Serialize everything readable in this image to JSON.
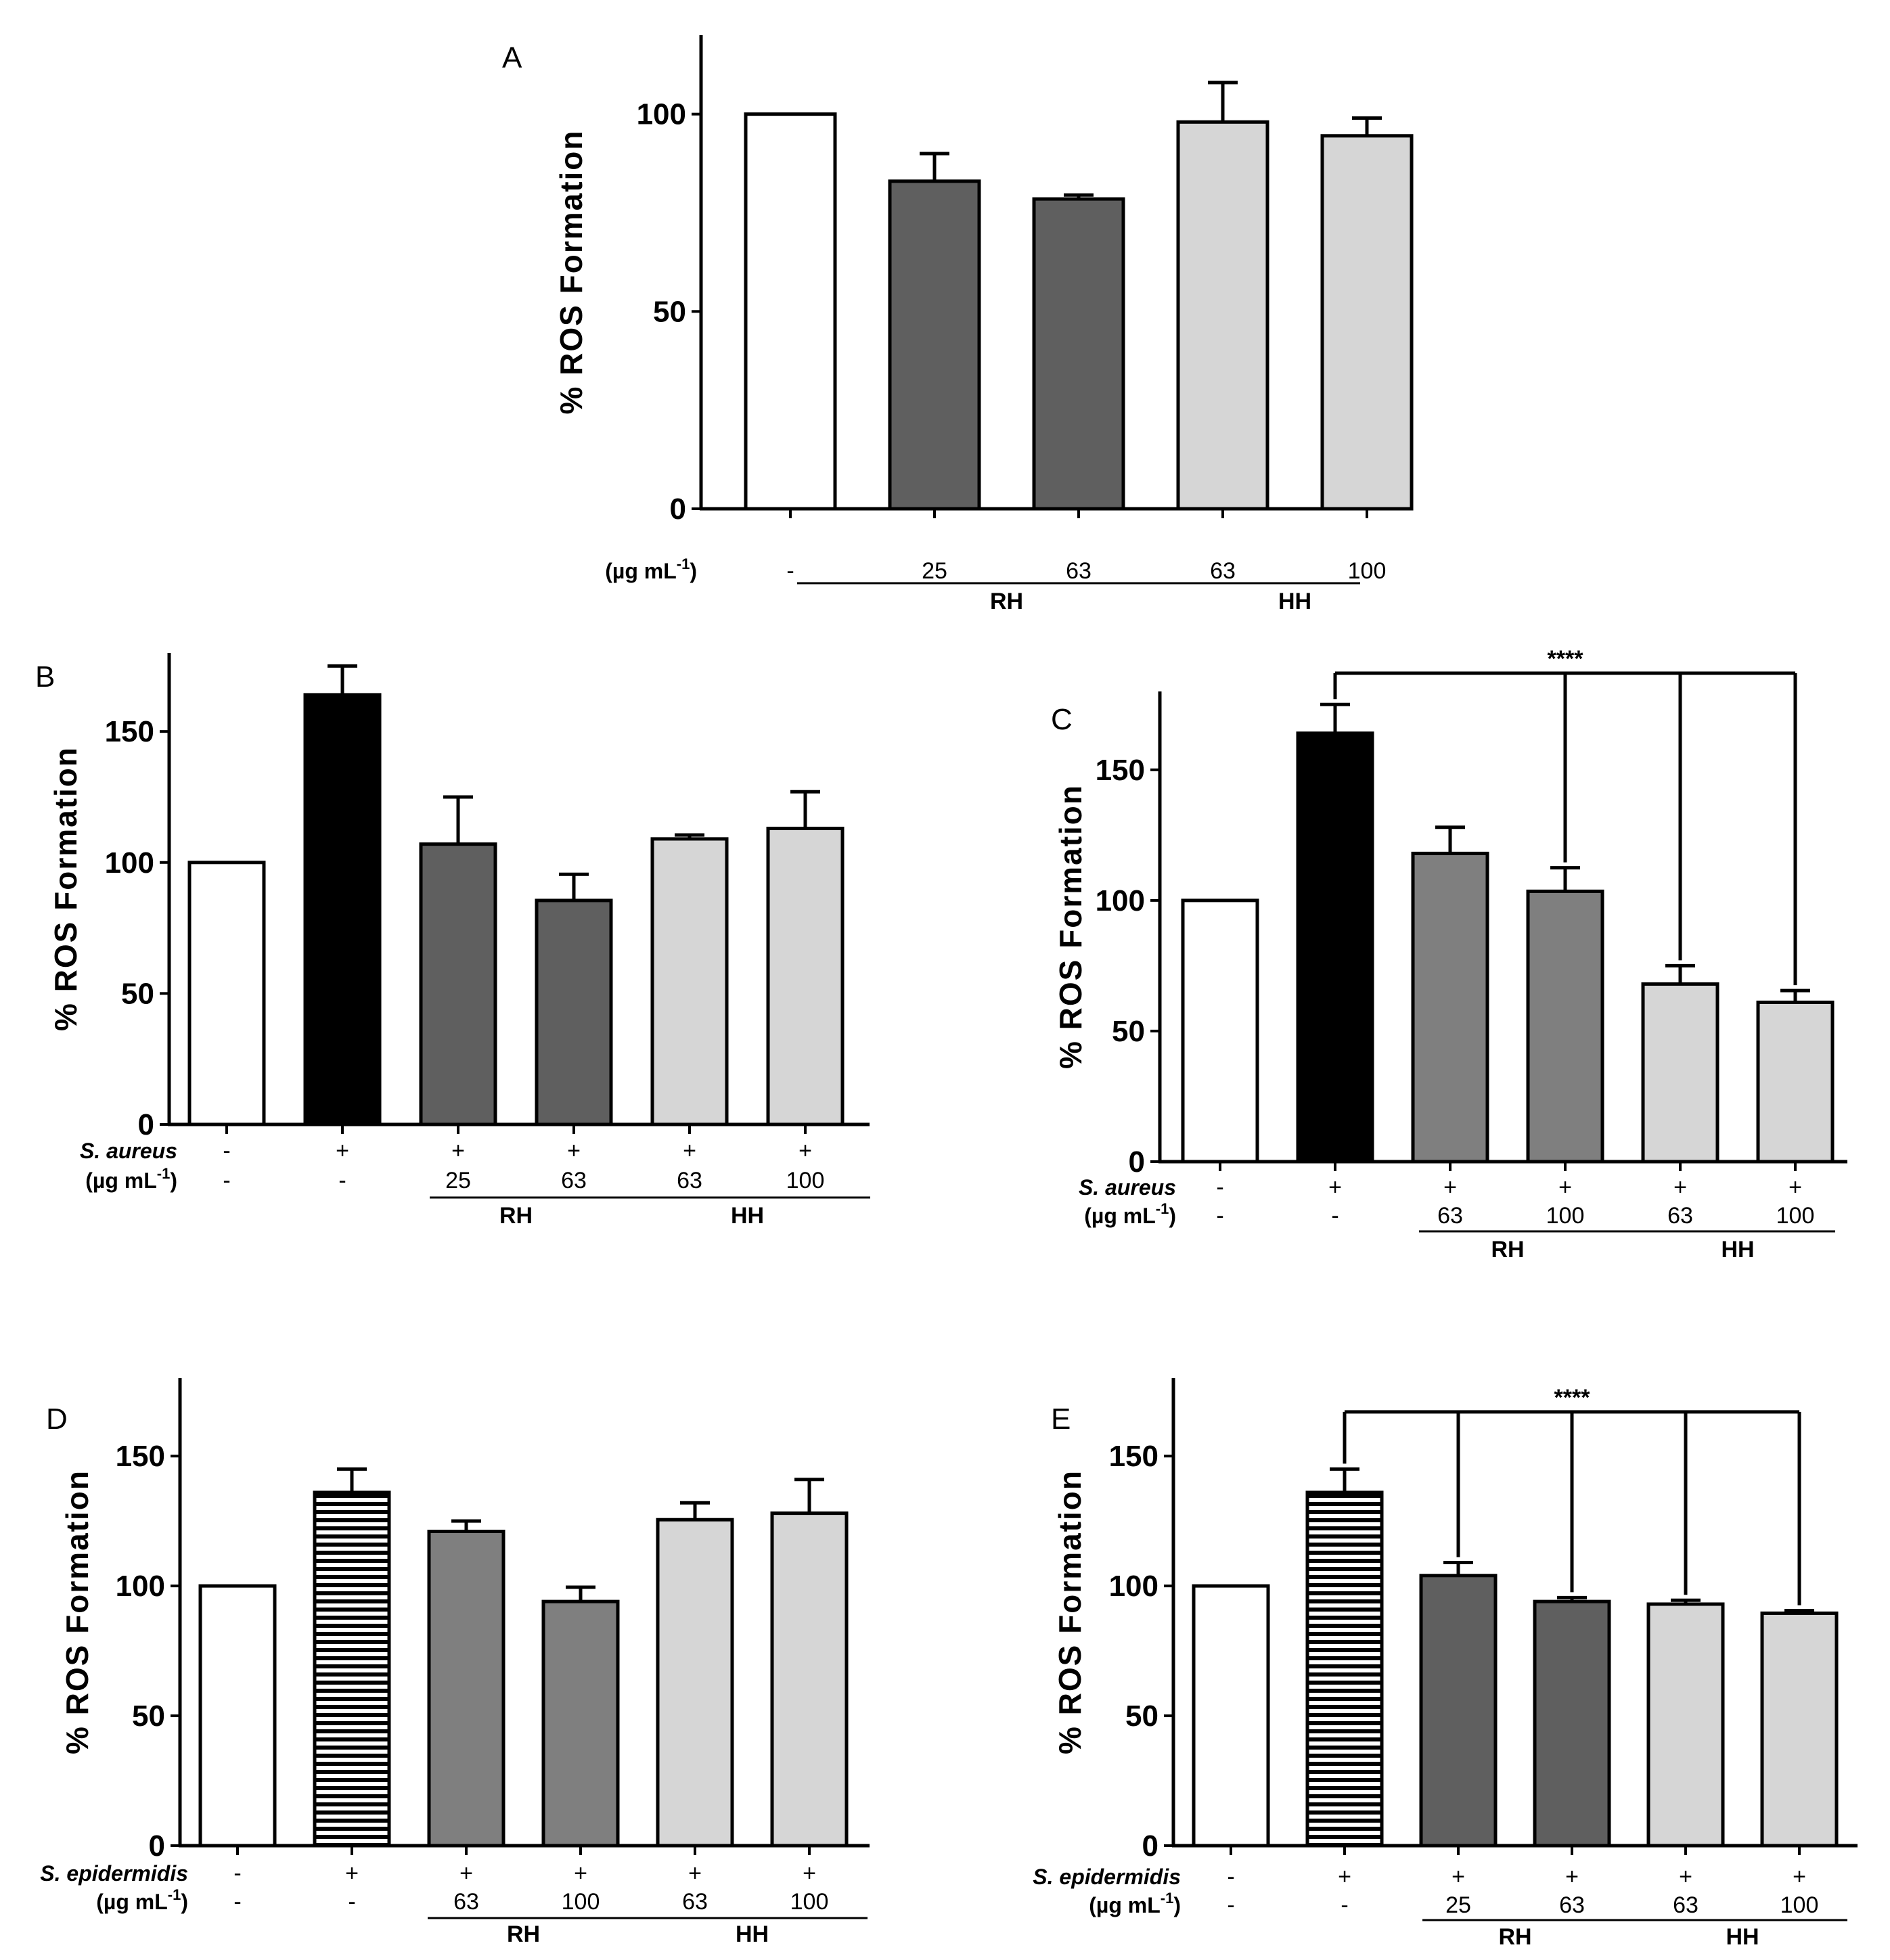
{
  "fills": {
    "white": "#ffffff",
    "black": "#000000",
    "dark": "#5f5f5f",
    "mid": "#7f7f7f",
    "light": "#d6d6d6"
  },
  "chart_data": [
    {
      "panel": "A",
      "type": "bar",
      "ylabel": "% ROS  Formation",
      "ylim": [
        0,
        120
      ],
      "yticks": [
        0,
        50,
        100
      ],
      "bars": [
        {
          "value": 100,
          "err": 0,
          "fill": "white",
          "pattern": null
        },
        {
          "value": 83,
          "err": 7,
          "fill": "dark",
          "pattern": null
        },
        {
          "value": 78.5,
          "err": 1,
          "fill": "dark",
          "pattern": null
        },
        {
          "value": 98,
          "err": 10,
          "fill": "light",
          "pattern": null
        },
        {
          "value": 94.5,
          "err": 4.5,
          "fill": "light",
          "pattern": null
        }
      ],
      "rows": [
        {
          "label": "(µg mL-1)",
          "cells": [
            "-",
            "25",
            "63",
            "63",
            "100"
          ]
        }
      ],
      "groups": [
        {
          "label": "RH",
          "from": 1,
          "to": 2
        },
        {
          "label": "HH",
          "from": 3,
          "to": 4
        }
      ],
      "significance": null
    },
    {
      "panel": "B",
      "type": "bar",
      "ylabel": "% ROS  Formation",
      "ylim": [
        0,
        180
      ],
      "yticks": [
        0,
        50,
        100,
        150
      ],
      "bars": [
        {
          "value": 100,
          "err": 0,
          "fill": "white",
          "pattern": null
        },
        {
          "value": 164,
          "err": 11,
          "fill": "black",
          "pattern": null
        },
        {
          "value": 107,
          "err": 18,
          "fill": "dark",
          "pattern": null
        },
        {
          "value": 85.5,
          "err": 10,
          "fill": "dark",
          "pattern": null
        },
        {
          "value": 109,
          "err": 1.5,
          "fill": "light",
          "pattern": null
        },
        {
          "value": 113,
          "err": 14,
          "fill": "light",
          "pattern": null
        }
      ],
      "rows": [
        {
          "label": "S. aureus",
          "italic": true,
          "cells": [
            "-",
            "+",
            "+",
            "+",
            "+",
            "+"
          ]
        },
        {
          "label": "(µg mL-1)",
          "cells": [
            "-",
            "-",
            "25",
            "63",
            "63",
            "100"
          ]
        }
      ],
      "groups": [
        {
          "label": "RH",
          "from": 2,
          "to": 3
        },
        {
          "label": "HH",
          "from": 4,
          "to": 5
        }
      ],
      "significance": null
    },
    {
      "panel": "C",
      "type": "bar",
      "ylabel": "% ROS  Formation",
      "ylim": [
        0,
        180
      ],
      "yticks": [
        0,
        50,
        100,
        150
      ],
      "bars": [
        {
          "value": 100,
          "err": 0,
          "fill": "white",
          "pattern": null
        },
        {
          "value": 164,
          "err": 11,
          "fill": "black",
          "pattern": null
        },
        {
          "value": 118,
          "err": 10,
          "fill": "mid",
          "pattern": null
        },
        {
          "value": 103.5,
          "err": 9,
          "fill": "mid",
          "pattern": null
        },
        {
          "value": 68,
          "err": 7,
          "fill": "light",
          "pattern": null
        },
        {
          "value": 61,
          "err": 4.5,
          "fill": "light",
          "pattern": null
        }
      ],
      "rows": [
        {
          "label": "S. aureus",
          "italic": true,
          "cells": [
            "-",
            "+",
            "+",
            "+",
            "+",
            "+"
          ]
        },
        {
          "label": "(µg mL-1)",
          "cells": [
            "-",
            "-",
            "63",
            "100",
            "63",
            "100"
          ]
        }
      ],
      "groups": [
        {
          "label": "RH",
          "from": 2,
          "to": 3
        },
        {
          "label": "HH",
          "from": 4,
          "to": 5
        }
      ],
      "significance": {
        "label": "****",
        "from": 1,
        "targets": [
          3,
          4,
          5
        ],
        "level": 187
      }
    },
    {
      "panel": "D",
      "type": "bar",
      "ylabel": "% ROS  Formation",
      "ylim": [
        0,
        180
      ],
      "yticks": [
        0,
        50,
        100,
        150
      ],
      "bars": [
        {
          "value": 100,
          "err": 0,
          "fill": "white",
          "pattern": null
        },
        {
          "value": 136,
          "err": 9,
          "fill": "white",
          "pattern": "stripes"
        },
        {
          "value": 121,
          "err": 4,
          "fill": "mid",
          "pattern": null
        },
        {
          "value": 94,
          "err": 5.5,
          "fill": "mid",
          "pattern": null
        },
        {
          "value": 125.5,
          "err": 6.5,
          "fill": "light",
          "pattern": null
        },
        {
          "value": 128,
          "err": 13,
          "fill": "light",
          "pattern": null
        }
      ],
      "rows": [
        {
          "label": "S. epidermidis",
          "italic": true,
          "cells": [
            "-",
            "+",
            "+",
            "+",
            "+",
            "+"
          ]
        },
        {
          "label": "(µg mL-1)",
          "cells": [
            "-",
            "-",
            "63",
            "100",
            "63",
            "100"
          ]
        }
      ],
      "groups": [
        {
          "label": "RH",
          "from": 2,
          "to": 3
        },
        {
          "label": "HH",
          "from": 4,
          "to": 5
        }
      ],
      "significance": null
    },
    {
      "panel": "E",
      "type": "bar",
      "ylabel": "% ROS  Formation",
      "ylim": [
        0,
        180
      ],
      "yticks": [
        0,
        50,
        100,
        150
      ],
      "bars": [
        {
          "value": 100,
          "err": 0,
          "fill": "white",
          "pattern": null
        },
        {
          "value": 136,
          "err": 9,
          "fill": "white",
          "pattern": "stripes"
        },
        {
          "value": 104,
          "err": 5,
          "fill": "dark",
          "pattern": null
        },
        {
          "value": 94,
          "err": 1.5,
          "fill": "dark",
          "pattern": null
        },
        {
          "value": 93,
          "err": 1.5,
          "fill": "light",
          "pattern": null
        },
        {
          "value": 89.5,
          "err": 1,
          "fill": "light",
          "pattern": null
        }
      ],
      "rows": [
        {
          "label": "S. epidermidis",
          "italic": true,
          "cells": [
            "-",
            "+",
            "+",
            "+",
            "+",
            "+"
          ]
        },
        {
          "label": "(µg mL-1)",
          "cells": [
            "-",
            "-",
            "25",
            "63",
            "63",
            "100"
          ]
        }
      ],
      "groups": [
        {
          "label": "RH",
          "from": 2,
          "to": 3
        },
        {
          "label": "HH",
          "from": 4,
          "to": 5
        }
      ],
      "significance": {
        "label": "****",
        "from": 1,
        "targets": [
          2,
          3,
          4,
          5
        ],
        "level": 167
      }
    }
  ]
}
